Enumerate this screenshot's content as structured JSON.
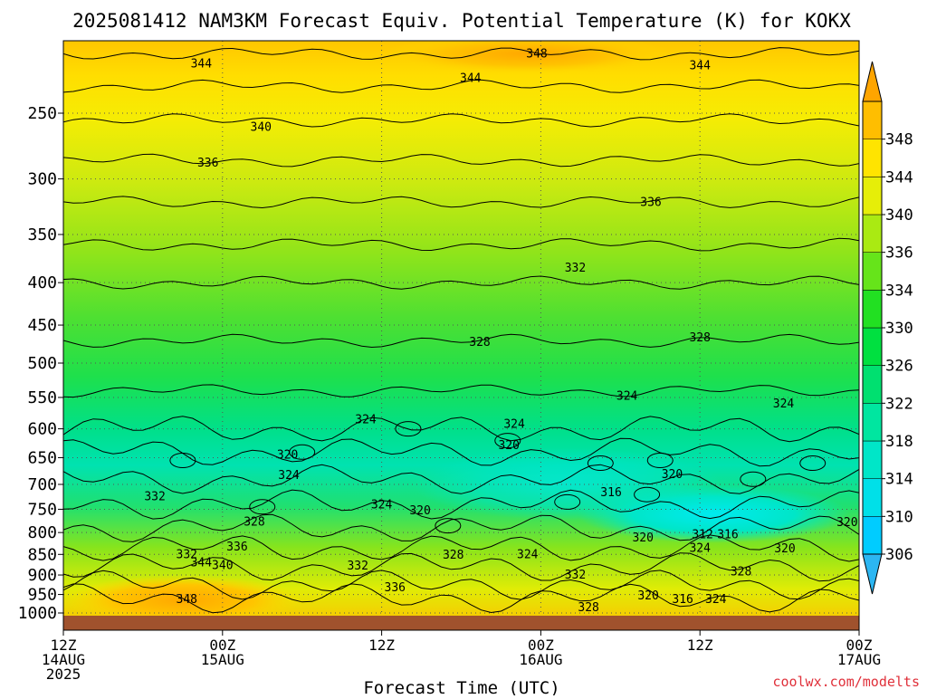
{
  "chart_data": {
    "type": "heatmap",
    "title": "2025081412 NAM3KM Forecast Equiv. Potential Temperature (K) for KOKX",
    "xlabel": "Forecast Time (UTC)",
    "ylabel": "",
    "credit": "coolwx.com/modelts",
    "x_ticks": [
      {
        "hour": 0,
        "lines": [
          "12Z",
          "14AUG",
          "2025"
        ]
      },
      {
        "hour": 12,
        "lines": [
          "00Z",
          "15AUG"
        ]
      },
      {
        "hour": 24,
        "lines": [
          "12Z"
        ]
      },
      {
        "hour": 36,
        "lines": [
          "00Z",
          "16AUG"
        ]
      },
      {
        "hour": 48,
        "lines": [
          "12Z"
        ]
      },
      {
        "hour": 60,
        "lines": [
          "00Z",
          "17AUG"
        ]
      }
    ],
    "xlim_hours": [
      0,
      60
    ],
    "y_scale": "log",
    "y_units": "hPa",
    "ylim": [
      1050,
      200
    ],
    "y_ticks": [
      250,
      300,
      350,
      400,
      450,
      500,
      550,
      600,
      650,
      700,
      750,
      800,
      850,
      900,
      950,
      1000
    ],
    "grid": true,
    "colorbar": {
      "labels": [
        306,
        310,
        314,
        318,
        322,
        326,
        330,
        334,
        336,
        340,
        344,
        348
      ],
      "colors": [
        "#00ccff",
        "#00e0e8",
        "#00e6c8",
        "#00e6a0",
        "#00e070",
        "#00e040",
        "#22e022",
        "#66e41a",
        "#aaea12",
        "#e6ee08",
        "#ffe400",
        "#ffbe00"
      ],
      "extend": "both",
      "under_color": "#2cb6f2",
      "over_color": "#ffa500"
    },
    "contour_labels": [
      {
        "hour": 10.4,
        "p": 218,
        "value": "344"
      },
      {
        "hour": 35.7,
        "p": 212,
        "value": "348"
      },
      {
        "hour": 30.7,
        "p": 227,
        "value": "344"
      },
      {
        "hour": 48.0,
        "p": 219,
        "value": "344"
      },
      {
        "hour": 14.9,
        "p": 260,
        "value": "340"
      },
      {
        "hour": 10.9,
        "p": 287,
        "value": "336"
      },
      {
        "hour": 44.3,
        "p": 320,
        "value": "336"
      },
      {
        "hour": 38.6,
        "p": 384,
        "value": "332"
      },
      {
        "hour": 31.4,
        "p": 472,
        "value": "328"
      },
      {
        "hour": 48.0,
        "p": 466,
        "value": "328"
      },
      {
        "hour": 42.5,
        "p": 548,
        "value": "324"
      },
      {
        "hour": 54.3,
        "p": 560,
        "value": "324"
      },
      {
        "hour": 22.8,
        "p": 585,
        "value": "324"
      },
      {
        "hour": 34.0,
        "p": 592,
        "value": "324"
      },
      {
        "hour": 16.9,
        "p": 645,
        "value": "320"
      },
      {
        "hour": 17.0,
        "p": 683,
        "value": "324"
      },
      {
        "hour": 33.6,
        "p": 628,
        "value": "320"
      },
      {
        "hour": 45.9,
        "p": 681,
        "value": "320"
      },
      {
        "hour": 6.9,
        "p": 724,
        "value": "332"
      },
      {
        "hour": 41.3,
        "p": 716,
        "value": "316"
      },
      {
        "hour": 24.0,
        "p": 741,
        "value": "324"
      },
      {
        "hour": 26.9,
        "p": 753,
        "value": "320"
      },
      {
        "hour": 59.1,
        "p": 778,
        "value": "320"
      },
      {
        "hour": 14.4,
        "p": 777,
        "value": "328"
      },
      {
        "hour": 48.2,
        "p": 805,
        "value": "312"
      },
      {
        "hour": 50.1,
        "p": 805,
        "value": "316"
      },
      {
        "hour": 43.7,
        "p": 812,
        "value": "320"
      },
      {
        "hour": 54.4,
        "p": 837,
        "value": "320"
      },
      {
        "hour": 48.0,
        "p": 836,
        "value": "324"
      },
      {
        "hour": 35.0,
        "p": 850,
        "value": "324"
      },
      {
        "hour": 29.4,
        "p": 852,
        "value": "328"
      },
      {
        "hour": 13.1,
        "p": 832,
        "value": "336"
      },
      {
        "hour": 9.3,
        "p": 850,
        "value": "332"
      },
      {
        "hour": 10.4,
        "p": 870,
        "value": "344"
      },
      {
        "hour": 12.0,
        "p": 877,
        "value": "340"
      },
      {
        "hour": 22.2,
        "p": 878,
        "value": "332"
      },
      {
        "hour": 38.6,
        "p": 900,
        "value": "332"
      },
      {
        "hour": 51.1,
        "p": 892,
        "value": "328"
      },
      {
        "hour": 25.0,
        "p": 932,
        "value": "336"
      },
      {
        "hour": 44.1,
        "p": 953,
        "value": "320"
      },
      {
        "hour": 46.7,
        "p": 963,
        "value": "316"
      },
      {
        "hour": 49.2,
        "p": 963,
        "value": "324"
      },
      {
        "hour": 9.3,
        "p": 963,
        "value": "348"
      },
      {
        "hour": 39.6,
        "p": 985,
        "value": "328"
      }
    ]
  }
}
